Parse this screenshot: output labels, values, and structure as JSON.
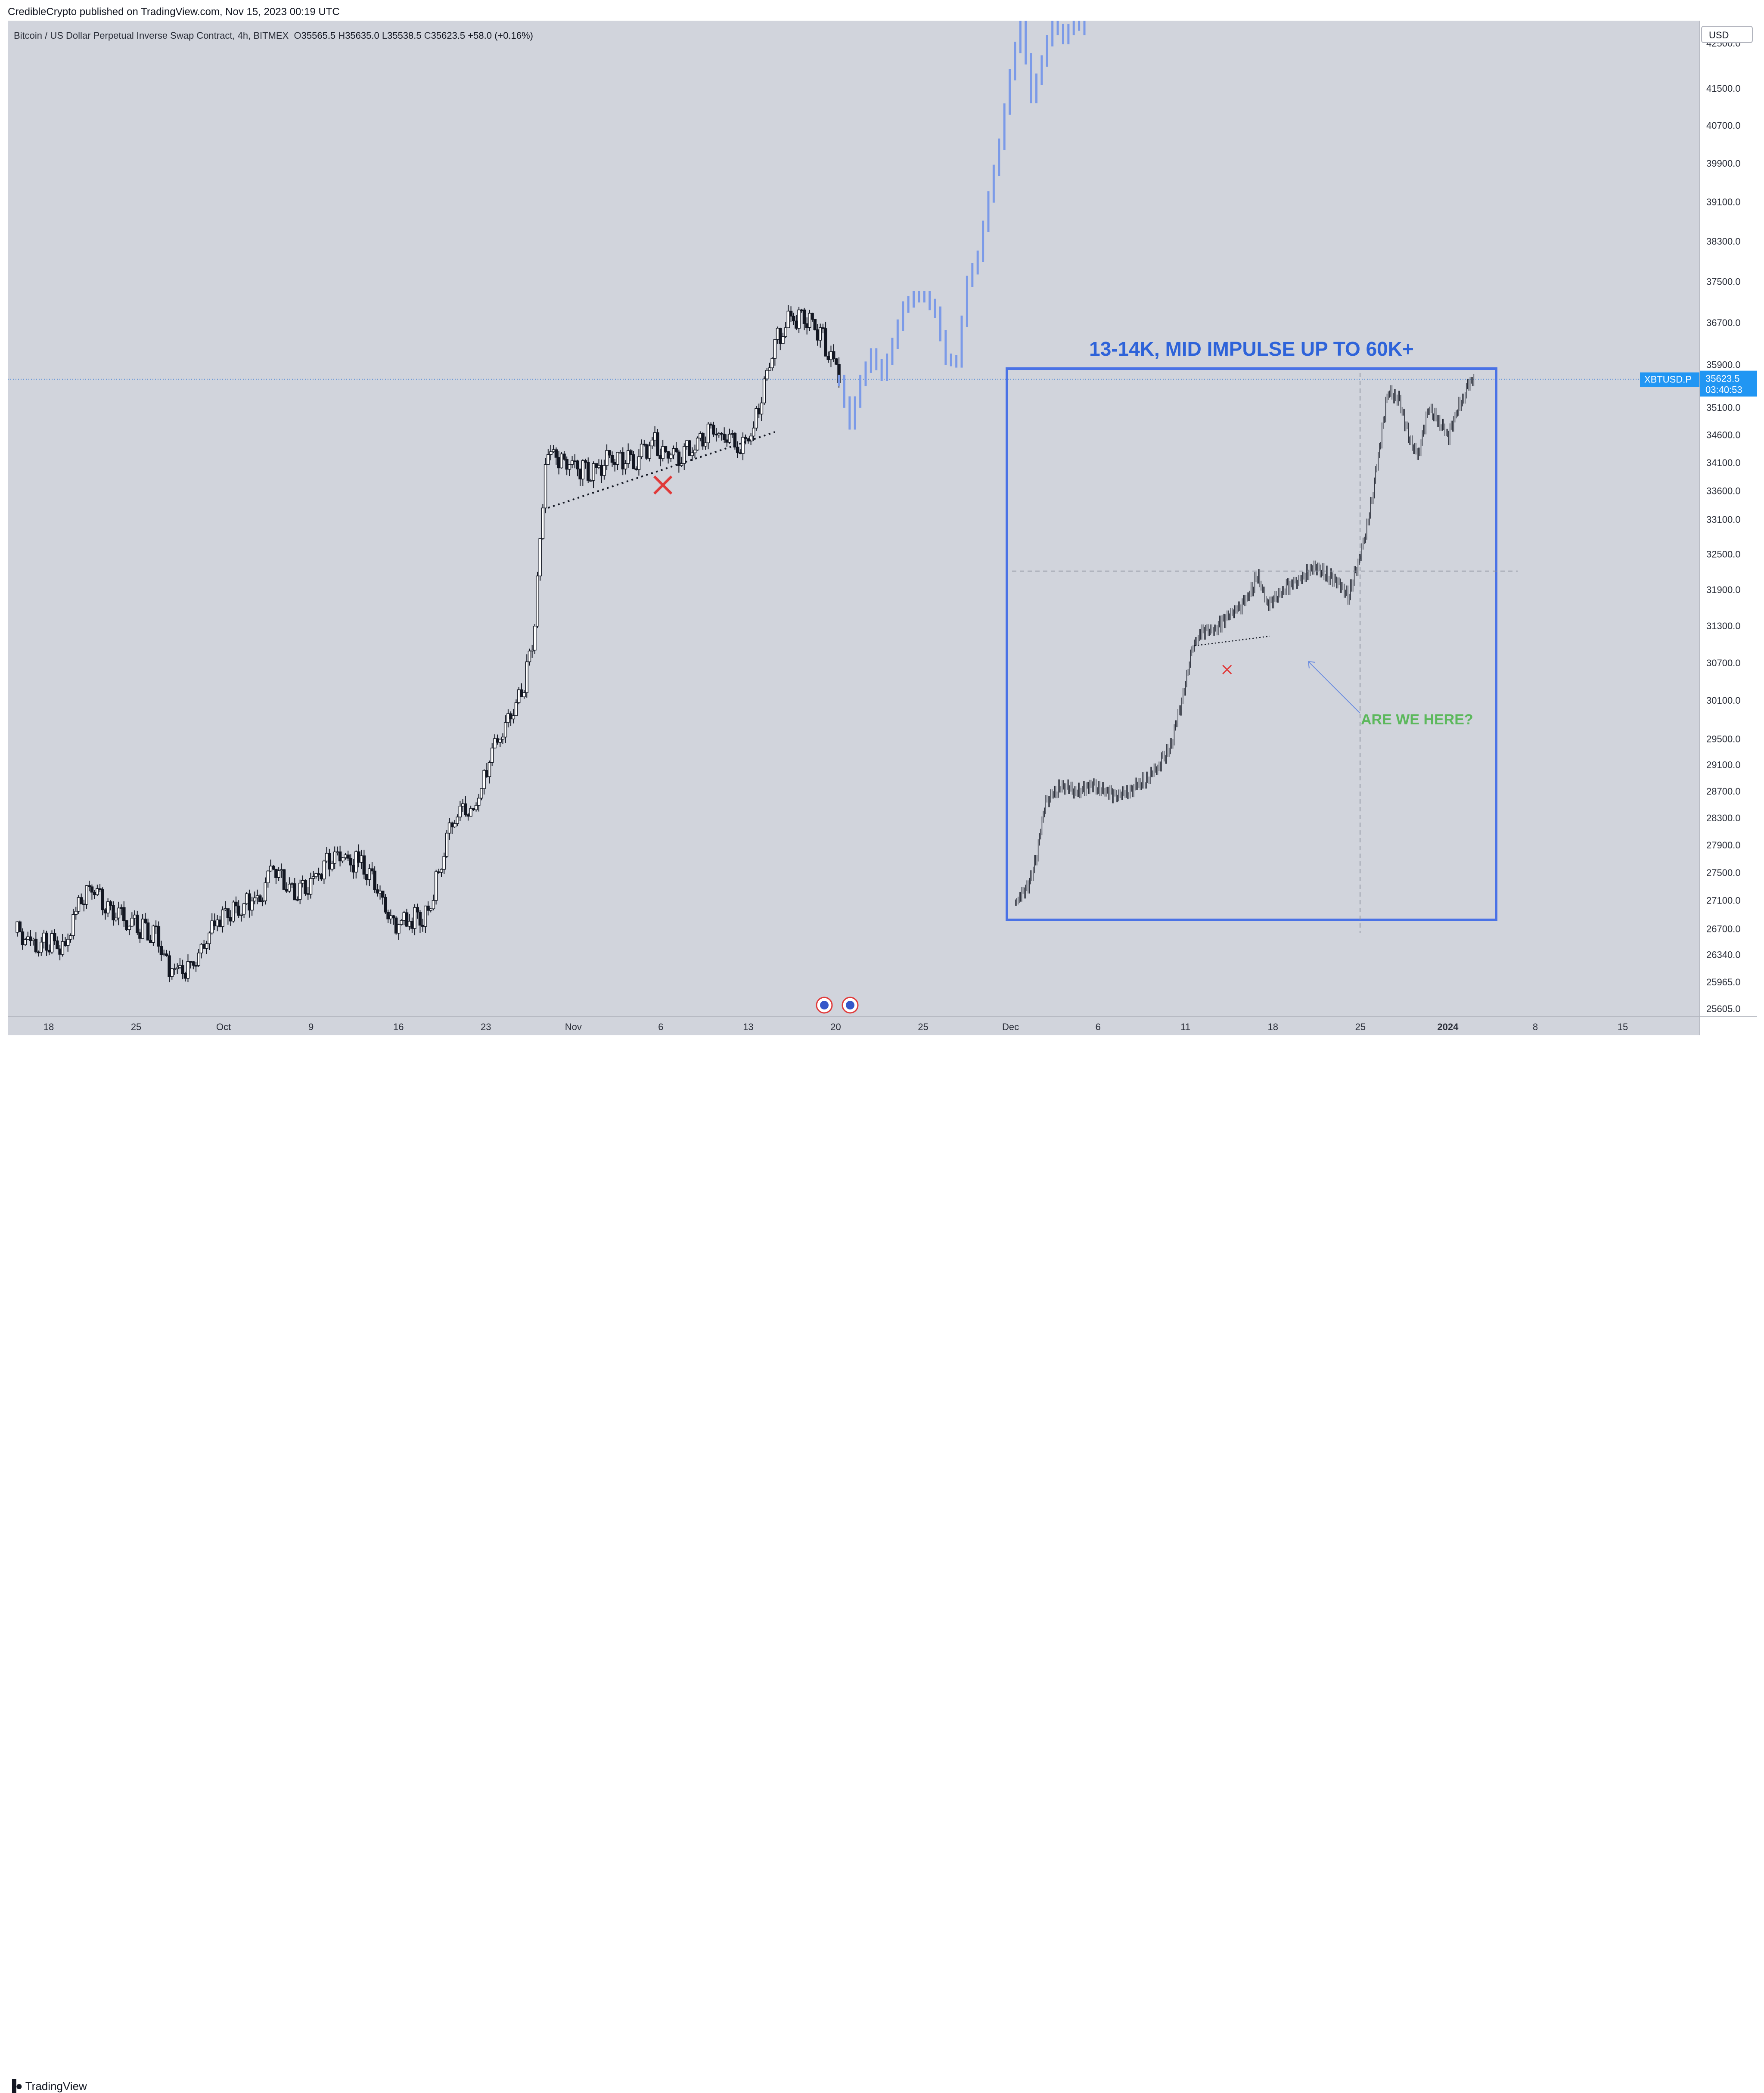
{
  "header": {
    "publish_line": "CredibleCrypto published on TradingView.com, Nov 15, 2023 00:19 UTC"
  },
  "legend": {
    "title": "Bitcoin / US Dollar Perpetual Inverse Swap Contract, 4h, BITMEX",
    "o_label": "O",
    "o": "35565.5",
    "h_label": "H",
    "h": "35635.0",
    "l_label": "L",
    "l": "35538.5",
    "c_label": "C",
    "c": "35623.5",
    "change": "+58.0 (+0.16%)"
  },
  "currency_button": "USD",
  "footer": {
    "brand": "TradingView"
  },
  "colors": {
    "pane_bg": "#d1d4dc",
    "candle": "#131722",
    "projection": "#7b9ae8",
    "box": "#4a72e6",
    "headline": "#2e63d9",
    "question": "#5cb85c",
    "cross": "#e03a3a",
    "price_tag": "#2196f3"
  },
  "chart_data": {
    "type": "candlestick",
    "symbol": "XBTUSD.P",
    "timeframe": "4h",
    "scale": "log",
    "y_range": [
      25500,
      43000
    ],
    "y_ticks": [
      "42500.0",
      "41500.0",
      "40700.0",
      "39900.0",
      "39100.0",
      "38300.0",
      "37500.0",
      "36700.0",
      "35900.0",
      "35100.0",
      "34600.0",
      "34100.0",
      "33600.0",
      "33100.0",
      "32500.0",
      "31900.0",
      "31300.0",
      "30700.0",
      "30100.0",
      "29500.0",
      "29100.0",
      "28700.0",
      "28300.0",
      "27900.0",
      "27500.0",
      "27100.0",
      "26700.0",
      "26340.0",
      "25965.0",
      "25605.0"
    ],
    "x_ticks": [
      "18",
      "25",
      "Oct",
      "9",
      "16",
      "23",
      "Nov",
      "6",
      "13",
      "20",
      "25",
      "Dec",
      "6",
      "11",
      "18",
      "25",
      "2024",
      "8",
      "15"
    ],
    "bold_x_ticks": [
      "2024"
    ],
    "current_price": {
      "symbol": "XBTUSD.P",
      "price": "35623.5",
      "countdown": "03:40:53",
      "value": 35623.5
    },
    "price_path": [
      {
        "x": 0,
        "y": 26650
      },
      {
        "x": 3,
        "y": 26450
      },
      {
        "x": 6,
        "y": 26500
      },
      {
        "x": 9,
        "y": 26450
      },
      {
        "x": 12,
        "y": 27150
      },
      {
        "x": 14,
        "y": 27300
      },
      {
        "x": 18,
        "y": 26950
      },
      {
        "x": 22,
        "y": 26750
      },
      {
        "x": 26,
        "y": 26600
      },
      {
        "x": 28,
        "y": 26200
      },
      {
        "x": 31,
        "y": 26100
      },
      {
        "x": 34,
        "y": 26300
      },
      {
        "x": 37,
        "y": 26800
      },
      {
        "x": 40,
        "y": 26950
      },
      {
        "x": 43,
        "y": 27050
      },
      {
        "x": 46,
        "y": 27200
      },
      {
        "x": 48,
        "y": 27550
      },
      {
        "x": 50,
        "y": 27350
      },
      {
        "x": 53,
        "y": 27200
      },
      {
        "x": 56,
        "y": 27450
      },
      {
        "x": 59,
        "y": 27750
      },
      {
        "x": 62,
        "y": 27700
      },
      {
        "x": 65,
        "y": 27600
      },
      {
        "x": 67,
        "y": 27300
      },
      {
        "x": 69,
        "y": 26950
      },
      {
        "x": 71,
        "y": 26750
      },
      {
        "x": 74,
        "y": 26850
      },
      {
        "x": 77,
        "y": 26900
      },
      {
        "x": 79,
        "y": 27500
      },
      {
        "x": 81,
        "y": 28200
      },
      {
        "x": 83,
        "y": 28400
      },
      {
        "x": 85,
        "y": 28300
      },
      {
        "x": 87,
        "y": 28700
      },
      {
        "x": 89,
        "y": 29300
      },
      {
        "x": 91,
        "y": 29650
      },
      {
        "x": 93,
        "y": 29900
      },
      {
        "x": 95,
        "y": 30300
      },
      {
        "x": 96,
        "y": 30800
      },
      {
        "x": 97,
        "y": 31300
      },
      {
        "x": 98,
        "y": 32700
      },
      {
        "x": 99,
        "y": 34100
      },
      {
        "x": 101,
        "y": 34200
      },
      {
        "x": 104,
        "y": 34050
      },
      {
        "x": 107,
        "y": 33900
      },
      {
        "x": 110,
        "y": 34100
      },
      {
        "x": 113,
        "y": 34200
      },
      {
        "x": 116,
        "y": 34100
      },
      {
        "x": 119,
        "y": 34500
      },
      {
        "x": 121,
        "y": 34300
      },
      {
        "x": 124,
        "y": 34250
      },
      {
        "x": 127,
        "y": 34400
      },
      {
        "x": 130,
        "y": 34650
      },
      {
        "x": 133,
        "y": 34550
      },
      {
        "x": 136,
        "y": 34400
      },
      {
        "x": 138,
        "y": 34700
      },
      {
        "x": 140,
        "y": 35500
      },
      {
        "x": 142,
        "y": 36300
      },
      {
        "x": 144,
        "y": 36700
      },
      {
        "x": 146,
        "y": 36800
      },
      {
        "x": 149,
        "y": 36650
      },
      {
        "x": 151,
        "y": 36400
      },
      {
        "x": 153,
        "y": 35900
      },
      {
        "x": 154,
        "y": 35600
      }
    ],
    "projection_path": [
      {
        "x": 154,
        "y": 35600
      },
      {
        "x": 156,
        "y": 34800
      },
      {
        "x": 158,
        "y": 35600
      },
      {
        "x": 160,
        "y": 36100
      },
      {
        "x": 162,
        "y": 35700
      },
      {
        "x": 164,
        "y": 36300
      },
      {
        "x": 166,
        "y": 37000
      },
      {
        "x": 168,
        "y": 37200
      },
      {
        "x": 170,
        "y": 37200
      },
      {
        "x": 172,
        "y": 36900
      },
      {
        "x": 174,
        "y": 36000
      },
      {
        "x": 176,
        "y": 35950
      },
      {
        "x": 178,
        "y": 37500
      },
      {
        "x": 180,
        "y": 38000
      },
      {
        "x": 182,
        "y": 39200
      },
      {
        "x": 184,
        "y": 40300
      },
      {
        "x": 186,
        "y": 41800
      },
      {
        "x": 188,
        "y": 43000
      },
      {
        "x": 190,
        "y": 41300
      },
      {
        "x": 192,
        "y": 42100
      },
      {
        "x": 194,
        "y": 43000
      },
      {
        "x": 196,
        "y": 42600
      },
      {
        "x": 198,
        "y": 43000
      },
      {
        "x": 200,
        "y": 42800
      }
    ],
    "fractal_path": [
      {
        "x": 0,
        "y": 0.0
      },
      {
        "x": 2,
        "y": 0.02
      },
      {
        "x": 4,
        "y": 0.08
      },
      {
        "x": 6,
        "y": 0.19
      },
      {
        "x": 9,
        "y": 0.22
      },
      {
        "x": 12,
        "y": 0.21
      },
      {
        "x": 16,
        "y": 0.22
      },
      {
        "x": 20,
        "y": 0.2
      },
      {
        "x": 24,
        "y": 0.22
      },
      {
        "x": 28,
        "y": 0.25
      },
      {
        "x": 31,
        "y": 0.3
      },
      {
        "x": 33,
        "y": 0.38
      },
      {
        "x": 35,
        "y": 0.48
      },
      {
        "x": 37,
        "y": 0.51
      },
      {
        "x": 40,
        "y": 0.52
      },
      {
        "x": 43,
        "y": 0.55
      },
      {
        "x": 46,
        "y": 0.57
      },
      {
        "x": 48,
        "y": 0.62
      },
      {
        "x": 50,
        "y": 0.56
      },
      {
        "x": 53,
        "y": 0.59
      },
      {
        "x": 56,
        "y": 0.61
      },
      {
        "x": 59,
        "y": 0.63
      },
      {
        "x": 62,
        "y": 0.62
      },
      {
        "x": 64,
        "y": 0.6
      },
      {
        "x": 66,
        "y": 0.58
      },
      {
        "x": 68,
        "y": 0.64
      },
      {
        "x": 70,
        "y": 0.72
      },
      {
        "x": 72,
        "y": 0.84
      },
      {
        "x": 74,
        "y": 0.97
      },
      {
        "x": 76,
        "y": 0.95
      },
      {
        "x": 78,
        "y": 0.88
      },
      {
        "x": 80,
        "y": 0.85
      },
      {
        "x": 82,
        "y": 0.93
      },
      {
        "x": 84,
        "y": 0.91
      },
      {
        "x": 86,
        "y": 0.88
      },
      {
        "x": 88,
        "y": 0.94
      },
      {
        "x": 90,
        "y": 0.98
      },
      {
        "x": 91,
        "y": 0.99
      }
    ],
    "annotations": {
      "headline": "13-14K, MID IMPULSE UP TO 60K+",
      "question": "ARE WE HERE?"
    }
  }
}
